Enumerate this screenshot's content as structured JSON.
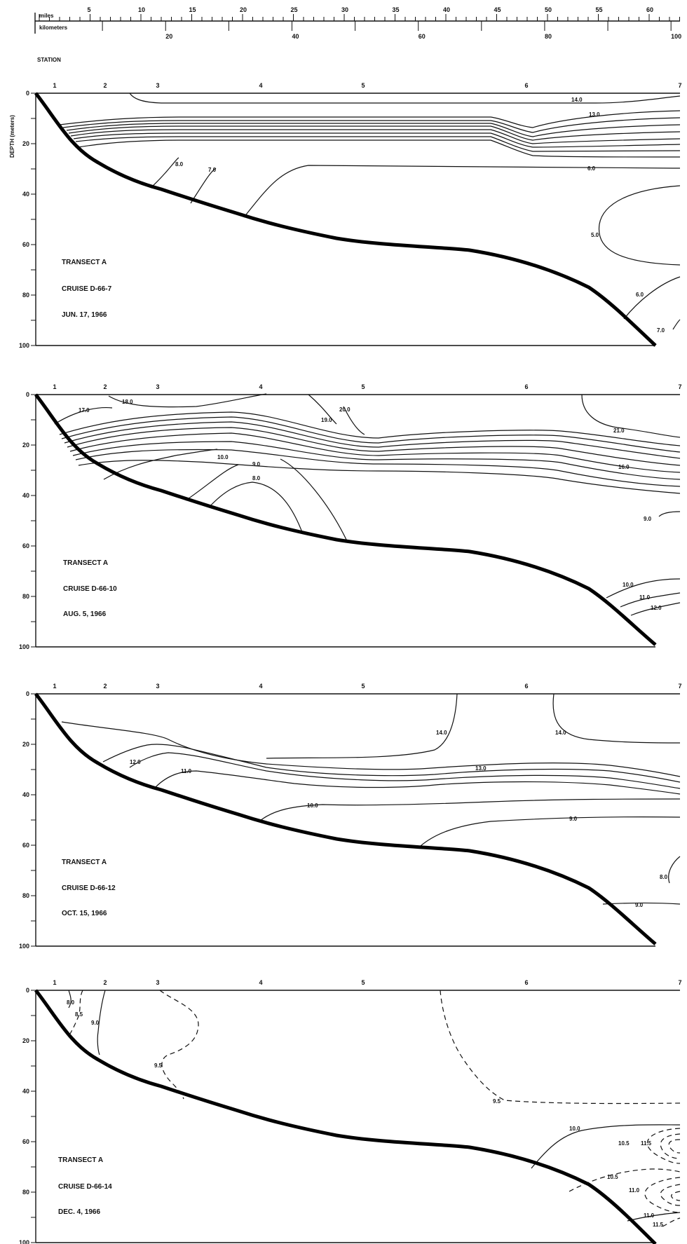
{
  "scale": {
    "miles_label": "miles",
    "km_label": "kilometers",
    "miles_ticks": [
      "5",
      "10",
      "15",
      "20",
      "25",
      "30",
      "35",
      "40",
      "45",
      "50",
      "55",
      "60"
    ],
    "km_ticks": [
      "20",
      "40",
      "60",
      "80",
      "100"
    ]
  },
  "station_header": "STATION",
  "ylabel": "DEPTH (meters)",
  "chart_data": [
    {
      "type": "contour",
      "transect": "TRANSECT A",
      "cruise": "CRUISE D-66-7",
      "date": "JUN. 17, 1966",
      "stations": [
        "1",
        "2",
        "3",
        "4",
        "5",
        "6",
        "7"
      ],
      "y_ticks": [
        "0",
        "20",
        "40",
        "60",
        "80",
        "100"
      ],
      "ylim": [
        0,
        100
      ],
      "isotherm_labels": [
        "14.0",
        "13.0",
        "8.0",
        "7.0",
        "6.0",
        "5.0",
        "6.0",
        "7.0"
      ]
    },
    {
      "type": "contour",
      "transect": "TRANSECT A",
      "cruise": "CRUISE D-66-10",
      "date": "AUG. 5, 1966",
      "stations": [
        "1",
        "2",
        "3",
        "4",
        "5",
        "6",
        "7"
      ],
      "y_ticks": [
        "0",
        "20",
        "40",
        "60",
        "80",
        "100"
      ],
      "ylim": [
        0,
        100
      ],
      "isotherm_labels": [
        "18.0",
        "17.0",
        "19.0",
        "20.0",
        "21.0",
        "16.0",
        "10.0",
        "9.0",
        "8.0",
        "9.0",
        "10.0",
        "11.0",
        "12.0"
      ]
    },
    {
      "type": "contour",
      "transect": "TRANSECT A",
      "cruise": "CRUISE D-66-12",
      "date": "OCT. 15, 1966",
      "stations": [
        "1",
        "2",
        "3",
        "4",
        "5",
        "6",
        "7"
      ],
      "y_ticks": [
        "0",
        "20",
        "40",
        "60",
        "80",
        "100"
      ],
      "ylim": [
        0,
        100
      ],
      "isotherm_labels": [
        "14.0",
        "14.0",
        "12.0",
        "11.0",
        "13.0",
        "10.0",
        "9.0",
        "8.0",
        "9.0"
      ]
    },
    {
      "type": "contour",
      "transect": "TRANSECT A",
      "cruise": "CRUISE D-66-14",
      "date": "DEC. 4, 1966",
      "stations": [
        "1",
        "2",
        "3",
        "4",
        "5",
        "6",
        "7"
      ],
      "y_ticks": [
        "0",
        "20",
        "40",
        "60",
        "80",
        "100"
      ],
      "ylim": [
        0,
        100
      ],
      "isotherm_labels": [
        "8.0",
        "8.5",
        "9.0",
        "9.5",
        "9.5",
        "10.0",
        "10.5",
        "11.5",
        "10.5",
        "11.0",
        "11.0",
        "11.5"
      ]
    }
  ]
}
